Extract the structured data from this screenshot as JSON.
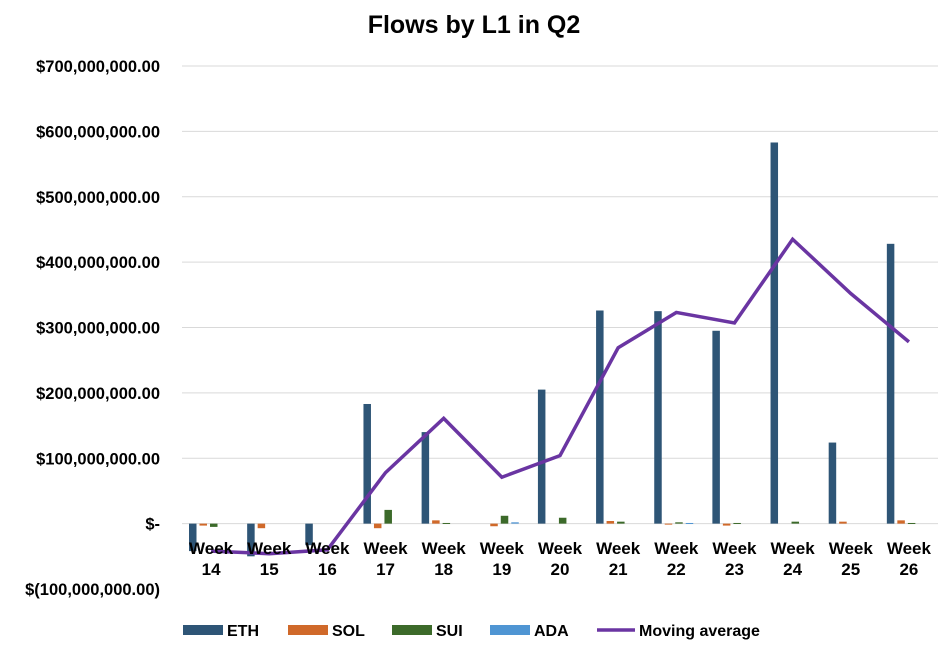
{
  "chart_data": {
    "type": "bar",
    "title": "Flows by L1 in Q2",
    "xlabel": "",
    "ylabel": "",
    "categories": [
      "Week 14",
      "Week 15",
      "Week 16",
      "Week 17",
      "Week 18",
      "Week 19",
      "Week 20",
      "Week 21",
      "Week 22",
      "Week 23",
      "Week 24",
      "Week 25",
      "Week 26"
    ],
    "ylim": [
      -100000000,
      700000000
    ],
    "yticks": [
      700000000,
      600000000,
      500000000,
      400000000,
      300000000,
      200000000,
      100000000,
      0,
      -100000000
    ],
    "ytick_labels": [
      "$700,000,000.00",
      "$600,000,000.00",
      "$500,000,000.00",
      "$400,000,000.00",
      "$300,000,000.00",
      "$200,000,000.00",
      "$100,000,000.00",
      "$-",
      "$(100,000,000.00)"
    ],
    "grid": true,
    "legend_position": "bottom",
    "series": [
      {
        "name": "ETH",
        "type": "bar",
        "color": "#2e5576",
        "values": [
          -42000000,
          -50000000,
          -33000000,
          183000000,
          140000000,
          0,
          205000000,
          326000000,
          325000000,
          295000000,
          583000000,
          124000000,
          428000000
        ]
      },
      {
        "name": "SOL",
        "type": "bar",
        "color": "#d0692a",
        "values": [
          -3000000,
          -7000000,
          0,
          -7000000,
          5000000,
          -4000000,
          0,
          4000000,
          -1000000,
          -3000000,
          0,
          3000000,
          5000000
        ]
      },
      {
        "name": "SUI",
        "type": "bar",
        "color": "#3c6a2a",
        "values": [
          -5000000,
          0,
          0,
          21000000,
          1000000,
          12000000,
          9000000,
          3000000,
          2000000,
          1000000,
          3000000,
          0,
          1000000
        ]
      },
      {
        "name": "ADA",
        "type": "bar",
        "color": "#4f95d3",
        "values": [
          0,
          0,
          0,
          0,
          0,
          2000000,
          0,
          0,
          1000000,
          0,
          0,
          0,
          0
        ]
      },
      {
        "name": "Moving average",
        "type": "line",
        "color": "#6a35a2",
        "values": [
          -42000000,
          -46000000,
          -40000000,
          78000000,
          161000000,
          71000000,
          104000000,
          269000000,
          323000000,
          307000000,
          435000000,
          352000000,
          278000000
        ]
      }
    ]
  }
}
